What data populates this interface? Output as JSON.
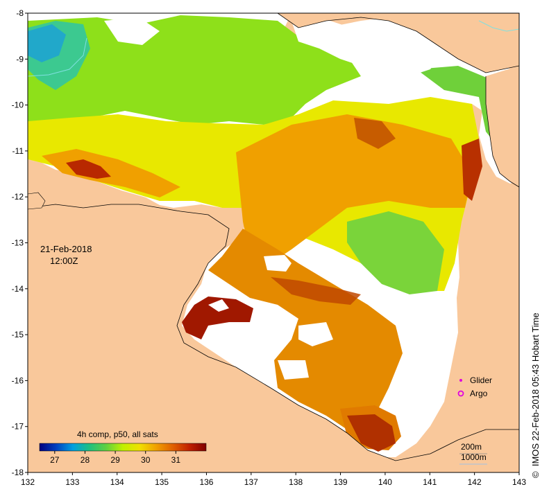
{
  "map": {
    "date": "21-Feb-2018",
    "time": "12:00Z",
    "x_ticks": [
      "132",
      "133",
      "134",
      "135",
      "136",
      "137",
      "138",
      "139",
      "140",
      "141",
      "142",
      "143"
    ],
    "y_ticks": [
      "-8",
      "-9",
      "-10",
      "-11",
      "-12",
      "-13",
      "-14",
      "-15",
      "-16",
      "-17",
      "-18"
    ],
    "lon_range": [
      132,
      143
    ],
    "lat_range": [
      -18,
      -8
    ]
  },
  "colorbar": {
    "title": "4h comp, p50, all sats",
    "labels": [
      "27",
      "28",
      "29",
      "30",
      "31"
    ],
    "range": [
      26.5,
      32.0
    ],
    "colors": [
      "#000080",
      "#0040c0",
      "#00a0e0",
      "#20c080",
      "#60d040",
      "#c0f000",
      "#f0e000",
      "#f0a000",
      "#e06000",
      "#c02000",
      "#800000"
    ]
  },
  "legend": {
    "glider_label": "Glider",
    "argo_label": "Argo",
    "glider_color": "#e000e0",
    "argo_color": "#e000e0"
  },
  "scale": {
    "depth1": "200m",
    "depth2": "1000m"
  },
  "credit": {
    "symbol": "©",
    "text": "IMOS 22-Feb-2018 05:43 Hobart Time"
  },
  "colors": {
    "land": "#f9c89b",
    "nodata": "#ffffff"
  }
}
